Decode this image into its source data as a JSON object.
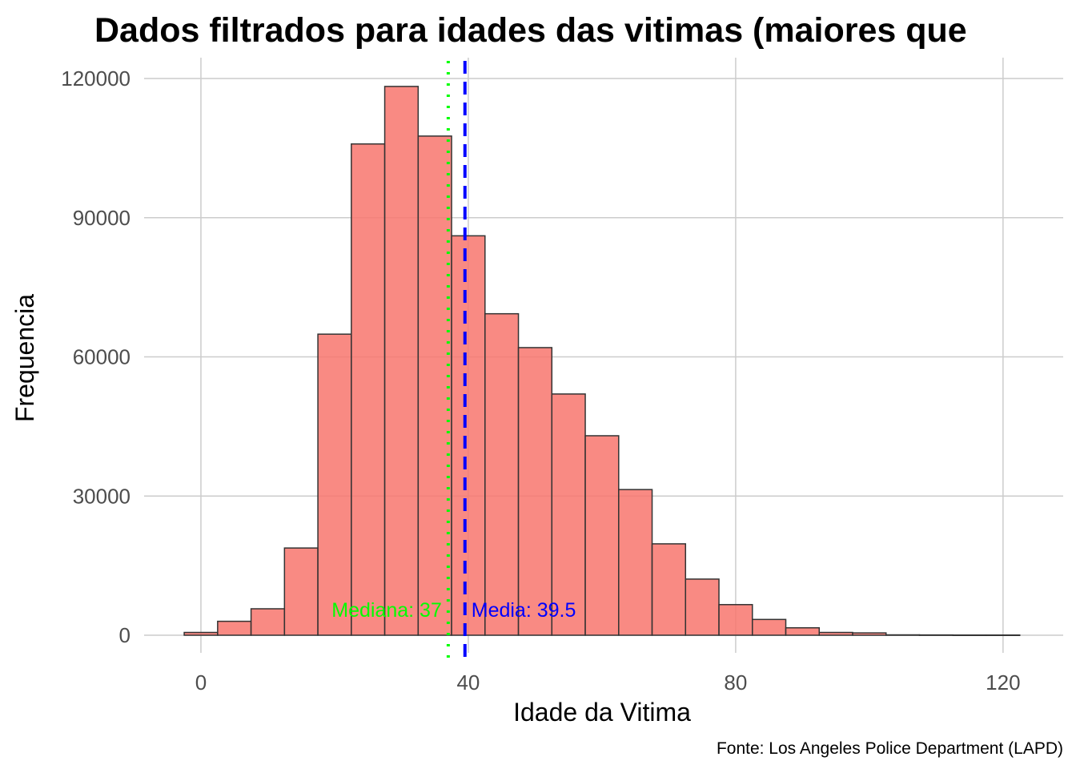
{
  "chart_data": {
    "type": "bar",
    "title": "Dados filtrados para idades das vitimas (maiores que",
    "xlabel": "Idade da Vitima",
    "ylabel": "Frequencia",
    "caption": "Fonte: Los Angeles Police Department (LAPD)",
    "xlim": [
      -8.5,
      129
    ],
    "ylim": [
      -3800,
      124500
    ],
    "x_ticks": [
      "0",
      "40",
      "80",
      "120"
    ],
    "y_ticks": [
      "0",
      "30000",
      "60000",
      "90000",
      "120000"
    ],
    "grid": true,
    "bin_width": 5,
    "bins_start": [
      -2.5,
      2.5,
      7.5,
      12.5,
      17.5,
      22.5,
      27.5,
      32.5,
      37.5,
      42.5,
      47.5,
      52.5,
      57.5,
      62.5,
      67.5,
      72.5,
      77.5,
      82.5,
      87.5,
      92.5,
      97.5,
      102.5,
      107.5,
      112.5,
      117.5
    ],
    "values": [
      600,
      3000,
      5700,
      18800,
      64900,
      105900,
      118300,
      107600,
      86100,
      69300,
      62000,
      52000,
      43000,
      31400,
      19700,
      12100,
      6600,
      3400,
      1600,
      600,
      500,
      80,
      60,
      40,
      40
    ],
    "colors": {
      "bar_fill": "#f8766d",
      "bar_opacity": 0.85,
      "bar_stroke": "#333333",
      "median": "#00ff00",
      "mean": "#0000ff",
      "grid": "#cccccc"
    },
    "reference_lines": [
      {
        "name": "median",
        "x": 37,
        "label": "Mediana: 37",
        "style": "dotted",
        "color": "#00ff00"
      },
      {
        "name": "mean",
        "x": 39.5,
        "label": "Media: 39.5",
        "style": "dashed",
        "color": "#0000ff"
      }
    ]
  }
}
